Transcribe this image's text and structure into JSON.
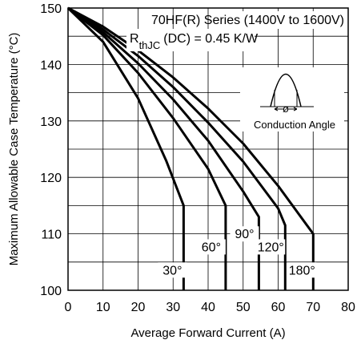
{
  "chart_data": {
    "type": "line",
    "xlabel": "Average Forward Current (A)",
    "ylabel": "Maximum Allowable Case Temperature (°C)",
    "xlim": [
      0,
      80
    ],
    "ylim": [
      100,
      150
    ],
    "x_ticks": [
      "0",
      "10",
      "20",
      "30",
      "40",
      "50",
      "60",
      "70",
      "80"
    ],
    "y_ticks": [
      "100",
      "110",
      "120",
      "130",
      "140",
      "150"
    ],
    "grid": true,
    "annotations": {
      "series_title": "70HF(R) Series (1400V to 1600V)",
      "rth_symbol": "R",
      "rth_subscript": "thJC",
      "rth_rest": "(DC) = 0.45 K/W",
      "inset_angle": "ø",
      "inset_caption": "Conduction Angle"
    },
    "series": [
      {
        "name": "30°",
        "x": [
          0,
          10,
          20,
          28,
          33,
          33
        ],
        "y": [
          150,
          144,
          134,
          123,
          115,
          100
        ]
      },
      {
        "name": "60°",
        "x": [
          0,
          10,
          20,
          30,
          40,
          45,
          45
        ],
        "y": [
          150,
          145.2,
          138.5,
          130.5,
          121.5,
          115,
          100
        ]
      },
      {
        "name": "90°",
        "x": [
          0,
          10,
          20,
          30,
          40,
          50,
          54.5,
          54.5
        ],
        "y": [
          150,
          145.7,
          140.2,
          133.8,
          126.5,
          117.5,
          113,
          100
        ]
      },
      {
        "name": "120°",
        "x": [
          0,
          10,
          20,
          30,
          40,
          50,
          60,
          62,
          62
        ],
        "y": [
          150,
          146.2,
          141.5,
          136,
          129.7,
          122.8,
          114.5,
          111.5,
          100
        ]
      },
      {
        "name": "180°",
        "x": [
          0,
          10,
          20,
          30,
          40,
          50,
          60,
          70,
          70
        ],
        "y": [
          150,
          146.7,
          142.5,
          137.7,
          132.2,
          126,
          118.5,
          110,
          100
        ]
      }
    ]
  }
}
